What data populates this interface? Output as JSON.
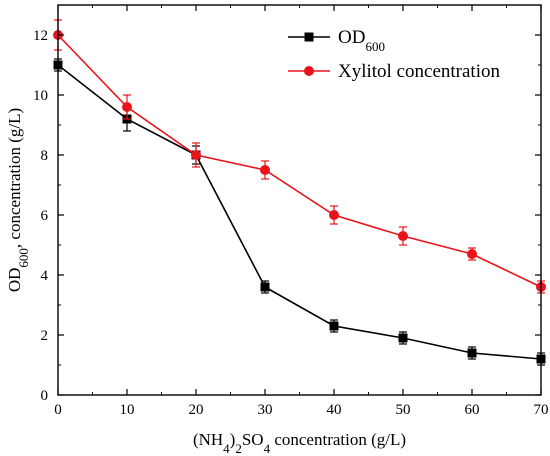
{
  "chart_data": {
    "type": "line",
    "xlabel": "(NH4)2SO4 concentration (g/L)",
    "ylabel": "OD600, concentration (g/L)",
    "x": [
      0,
      10,
      20,
      30,
      40,
      50,
      60,
      70
    ],
    "xlim": [
      0,
      70
    ],
    "ylim": [
      0,
      13
    ],
    "xticks": [
      0,
      10,
      20,
      30,
      40,
      50,
      60,
      70
    ],
    "yticks": [
      0,
      2,
      4,
      6,
      8,
      10,
      12
    ],
    "grid": false,
    "legend_position": "top-right",
    "series": [
      {
        "name": "OD600",
        "marker": "square",
        "color": "#000000",
        "values": [
          11.0,
          9.2,
          8.0,
          3.6,
          2.3,
          1.9,
          1.4,
          1.2
        ],
        "errors": [
          0.2,
          0.4,
          0.3,
          0.2,
          0.2,
          0.2,
          0.2,
          0.2
        ]
      },
      {
        "name": "Xylitol concentration",
        "marker": "circle",
        "color": "#e8141b",
        "values": [
          12.0,
          9.6,
          8.0,
          7.5,
          6.0,
          5.3,
          4.7,
          3.6
        ],
        "errors": [
          0.5,
          0.4,
          0.4,
          0.3,
          0.3,
          0.3,
          0.2,
          0.2
        ]
      }
    ]
  }
}
